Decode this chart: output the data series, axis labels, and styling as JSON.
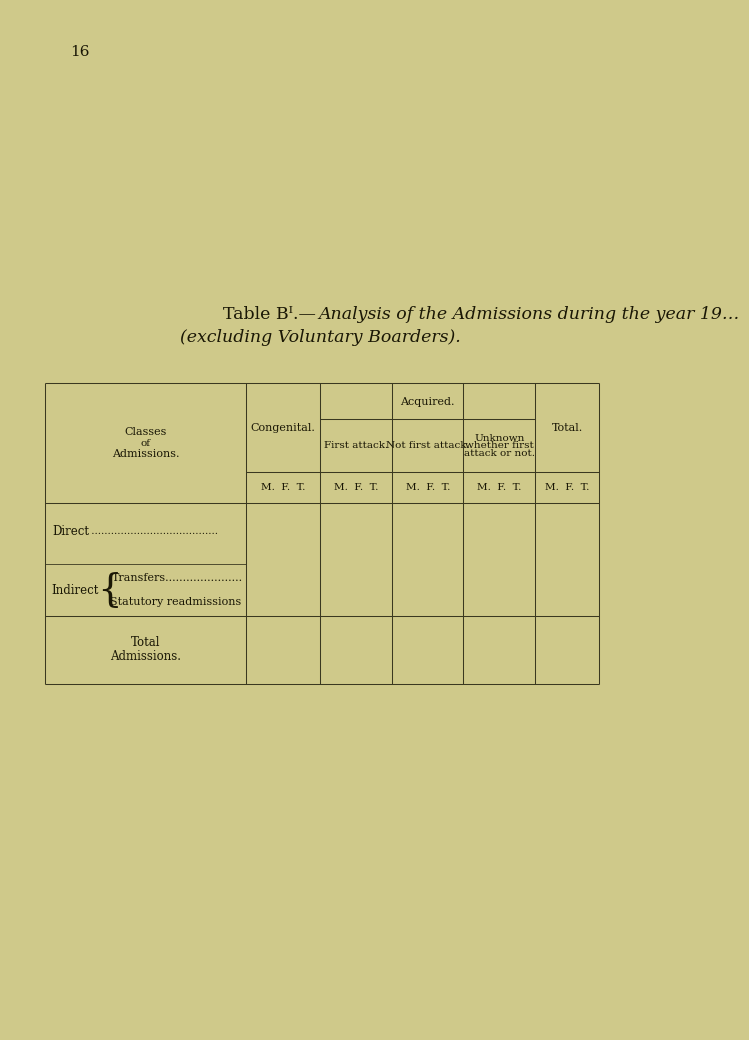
{
  "bg_color": "#cfc98a",
  "page_num": "16",
  "title_part1": "Table B",
  "title_part1b": "I",
  "title_dash": ".—",
  "title_italic": "Analysis of the Admissions during the year 19…",
  "title_line2_italic": "(excluding Voluntary Boarders).",
  "col_header_congenital": "Congenital.",
  "col_header_acquired": "Acquired.",
  "col_header_total": "Total.",
  "col_classes": "Classes\nof\nAdmissions.",
  "sub_first": "First attack.",
  "sub_not_first": "Not first attack.",
  "sub_unknown_1": "Unknown",
  "sub_unknown_2": "whether first",
  "sub_unknown_3": "attack or not.",
  "mft": "M.  F.  T.",
  "row_direct": "Direct",
  "row_direct_dots": " .......................................",
  "row_indirect": "Indirect",
  "row_transfers": "Transfers......................",
  "row_statutory": "Statutory readmissions",
  "row_total_1": "Total",
  "row_total_2": "Admissions.",
  "text_color": "#1a1705",
  "line_color": "#3a3820"
}
